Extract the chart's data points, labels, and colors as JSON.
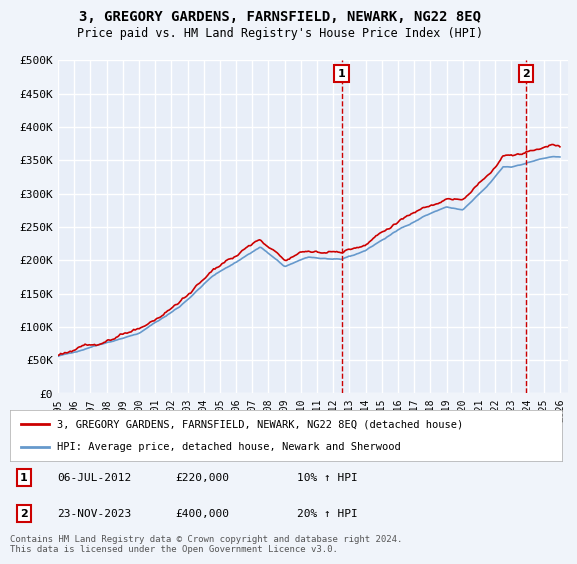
{
  "title": "3, GREGORY GARDENS, FARNSFIELD, NEWARK, NG22 8EQ",
  "subtitle": "Price paid vs. HM Land Registry's House Price Index (HPI)",
  "ylabel_ticks": [
    0,
    50000,
    100000,
    150000,
    200000,
    250000,
    300000,
    350000,
    400000,
    450000,
    500000
  ],
  "ylabel_labels": [
    "£0",
    "£50K",
    "£100K",
    "£150K",
    "£200K",
    "£250K",
    "£300K",
    "£350K",
    "£400K",
    "£450K",
    "£500K"
  ],
  "ylim": [
    0,
    500000
  ],
  "xlim_start": 1995.0,
  "xlim_end": 2026.5,
  "xtick_years": [
    1995,
    1996,
    1997,
    1998,
    1999,
    2000,
    2001,
    2002,
    2003,
    2004,
    2005,
    2006,
    2007,
    2008,
    2009,
    2010,
    2011,
    2012,
    2013,
    2014,
    2015,
    2016,
    2017,
    2018,
    2019,
    2020,
    2021,
    2022,
    2023,
    2024,
    2025,
    2026
  ],
  "background_color": "#f0f4fa",
  "plot_bg_color": "#e8eef8",
  "grid_color": "#ffffff",
  "red_color": "#cc0000",
  "blue_color": "#6699cc",
  "sale1_x": 2012.52,
  "sale1_y": 220000,
  "sale1_label": "1",
  "sale1_date": "06-JUL-2012",
  "sale1_price": "£220,000",
  "sale1_hpi": "10% ↑ HPI",
  "sale2_x": 2023.9,
  "sale2_y": 400000,
  "sale2_label": "2",
  "sale2_date": "23-NOV-2023",
  "sale2_price": "£400,000",
  "sale2_hpi": "20% ↑ HPI",
  "legend_line1": "3, GREGORY GARDENS, FARNSFIELD, NEWARK, NG22 8EQ (detached house)",
  "legend_line2": "HPI: Average price, detached house, Newark and Sherwood",
  "footer": "Contains HM Land Registry data © Crown copyright and database right 2024.\nThis data is licensed under the Open Government Licence v3.0.",
  "marker_y": 480000,
  "hpi_anchors_t": [
    1995.0,
    1997.0,
    2000.0,
    2002.5,
    2004.5,
    2007.5,
    2009.0,
    2010.5,
    2012.5,
    2014.0,
    2016.0,
    2017.5,
    2019.0,
    2020.0,
    2021.5,
    2022.5,
    2023.0,
    2024.5,
    2025.5
  ],
  "hpi_anchors_v": [
    55000,
    70000,
    90000,
    130000,
    175000,
    220000,
    190000,
    205000,
    200000,
    215000,
    245000,
    265000,
    280000,
    275000,
    310000,
    340000,
    340000,
    350000,
    355000
  ]
}
